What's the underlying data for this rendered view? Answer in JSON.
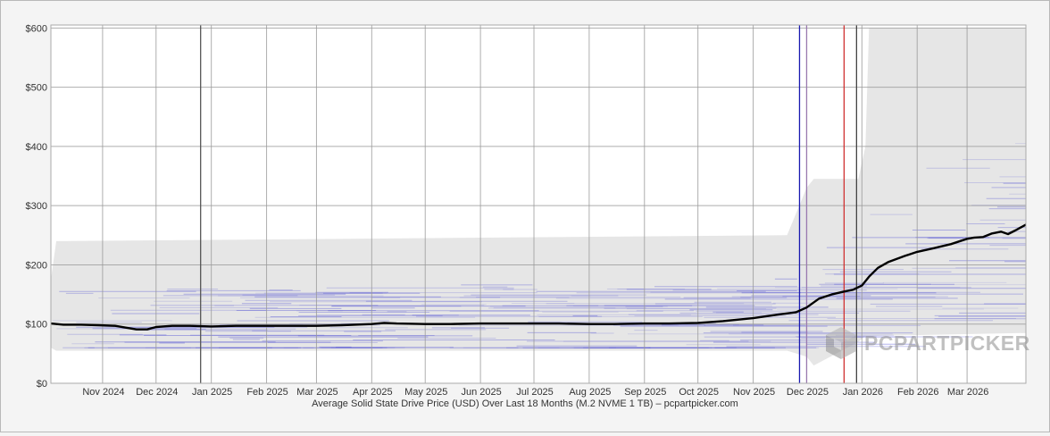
{
  "chart_data": {
    "type": "line",
    "title": "",
    "caption": "Average Solid State Drive Price (USD) Over Last 18 Months (M.2 NVME 1 TB) – pcpartpicker.com",
    "xlabel": "",
    "ylabel": "",
    "x_range": [
      "2024-10-03",
      "2026-04-03"
    ],
    "ylim": [
      0,
      605
    ],
    "y_ticks": [
      0,
      100,
      200,
      300,
      400,
      500,
      600
    ],
    "y_tick_labels": [
      "$0",
      "$100",
      "$200",
      "$300",
      "$400",
      "$500",
      "$600"
    ],
    "x_ticks": [
      "2024-11-01",
      "2024-12-01",
      "2025-01-01",
      "2025-02-01",
      "2025-03-01",
      "2025-04-01",
      "2025-05-01",
      "2025-06-01",
      "2025-07-01",
      "2025-08-01",
      "2025-09-01",
      "2025-10-01",
      "2025-11-01",
      "2025-12-01",
      "2026-01-01",
      "2026-02-01",
      "2026-03-01"
    ],
    "x_tick_labels": [
      "Nov 2024",
      "Dec 2024",
      "Jan 2025",
      "Feb 2025",
      "Mar 2025",
      "Apr 2025",
      "May 2025",
      "Jun 2025",
      "Jul 2025",
      "Aug 2025",
      "Sep 2025",
      "Oct 2025",
      "Nov 2025",
      "Dec 2025",
      "Jan 2026",
      "Feb 2026",
      "Mar 2026"
    ],
    "grid": true,
    "series": [
      {
        "type": "line",
        "color": "#000000",
        "points": [
          [
            "2024-10-03",
            101
          ],
          [
            "2024-10-10",
            99
          ],
          [
            "2024-10-20",
            99
          ],
          [
            "2024-10-30",
            98
          ],
          [
            "2024-11-08",
            97
          ],
          [
            "2024-11-14",
            94
          ],
          [
            "2024-11-20",
            91
          ],
          [
            "2024-11-26",
            91
          ],
          [
            "2024-12-01",
            95
          ],
          [
            "2024-12-10",
            97
          ],
          [
            "2024-12-20",
            97
          ],
          [
            "2025-01-01",
            96
          ],
          [
            "2025-01-15",
            97
          ],
          [
            "2025-02-01",
            97
          ],
          [
            "2025-02-15",
            97
          ],
          [
            "2025-03-01",
            97
          ],
          [
            "2025-03-15",
            98
          ],
          [
            "2025-04-01",
            100
          ],
          [
            "2025-04-08",
            102
          ],
          [
            "2025-04-15",
            101
          ],
          [
            "2025-05-01",
            100
          ],
          [
            "2025-05-15",
            100
          ],
          [
            "2025-06-01",
            101
          ],
          [
            "2025-06-15",
            101
          ],
          [
            "2025-07-01",
            101
          ],
          [
            "2025-07-15",
            101
          ],
          [
            "2025-08-01",
            100
          ],
          [
            "2025-08-15",
            100
          ],
          [
            "2025-09-01",
            101
          ],
          [
            "2025-09-15",
            101
          ],
          [
            "2025-10-01",
            102
          ],
          [
            "2025-10-15",
            105
          ],
          [
            "2025-11-01",
            110
          ],
          [
            "2025-11-15",
            116
          ],
          [
            "2025-11-25",
            120
          ],
          [
            "2025-12-01",
            128
          ],
          [
            "2025-12-08",
            143
          ],
          [
            "2025-12-15",
            150
          ],
          [
            "2025-12-22",
            155
          ],
          [
            "2025-12-27",
            158
          ],
          [
            "2026-01-01",
            165
          ],
          [
            "2026-01-05",
            180
          ],
          [
            "2026-01-10",
            195
          ],
          [
            "2026-01-16",
            205
          ],
          [
            "2026-01-25",
            215
          ],
          [
            "2026-02-01",
            222
          ],
          [
            "2026-02-10",
            228
          ],
          [
            "2026-02-20",
            235
          ],
          [
            "2026-03-01",
            244
          ],
          [
            "2026-03-05",
            246
          ],
          [
            "2026-03-10",
            247
          ],
          [
            "2026-03-15",
            253
          ],
          [
            "2026-03-20",
            256
          ],
          [
            "2026-03-24",
            252
          ],
          [
            "2026-03-28",
            258
          ],
          [
            "2026-04-03",
            268
          ]
        ]
      }
    ],
    "range_band": {
      "description": "light gray min/max price band",
      "color": "#e6e6e6",
      "points": [
        [
          "2024-10-03",
          60,
          175
        ],
        [
          "2024-10-06",
          55,
          240
        ],
        [
          "2025-11-20",
          55,
          250
        ],
        [
          "2025-12-01",
          45,
          330
        ],
        [
          "2025-12-05",
          30,
          345
        ],
        [
          "2025-12-30",
          70,
          345
        ],
        [
          "2026-01-03",
          80,
          400
        ],
        [
          "2026-01-05",
          80,
          600
        ],
        [
          "2026-04-03",
          85,
          600
        ]
      ]
    },
    "listings_stripes": {
      "description": "individual listing price stripes (blue)",
      "color": "#3a3ad0"
    },
    "vertical_markers": [
      {
        "date": "2024-12-26",
        "color": "#555555"
      },
      {
        "date": "2025-11-27",
        "color": "#1a1ab0"
      },
      {
        "date": "2025-12-01",
        "color": "#9a7ab0"
      },
      {
        "date": "2025-12-22",
        "color": "#d03030"
      },
      {
        "date": "2025-12-29",
        "color": "#444444"
      }
    ]
  },
  "watermark": {
    "text": "PCPARTPICKER",
    "logo_icon": "pcpartpicker-cube-icon"
  }
}
